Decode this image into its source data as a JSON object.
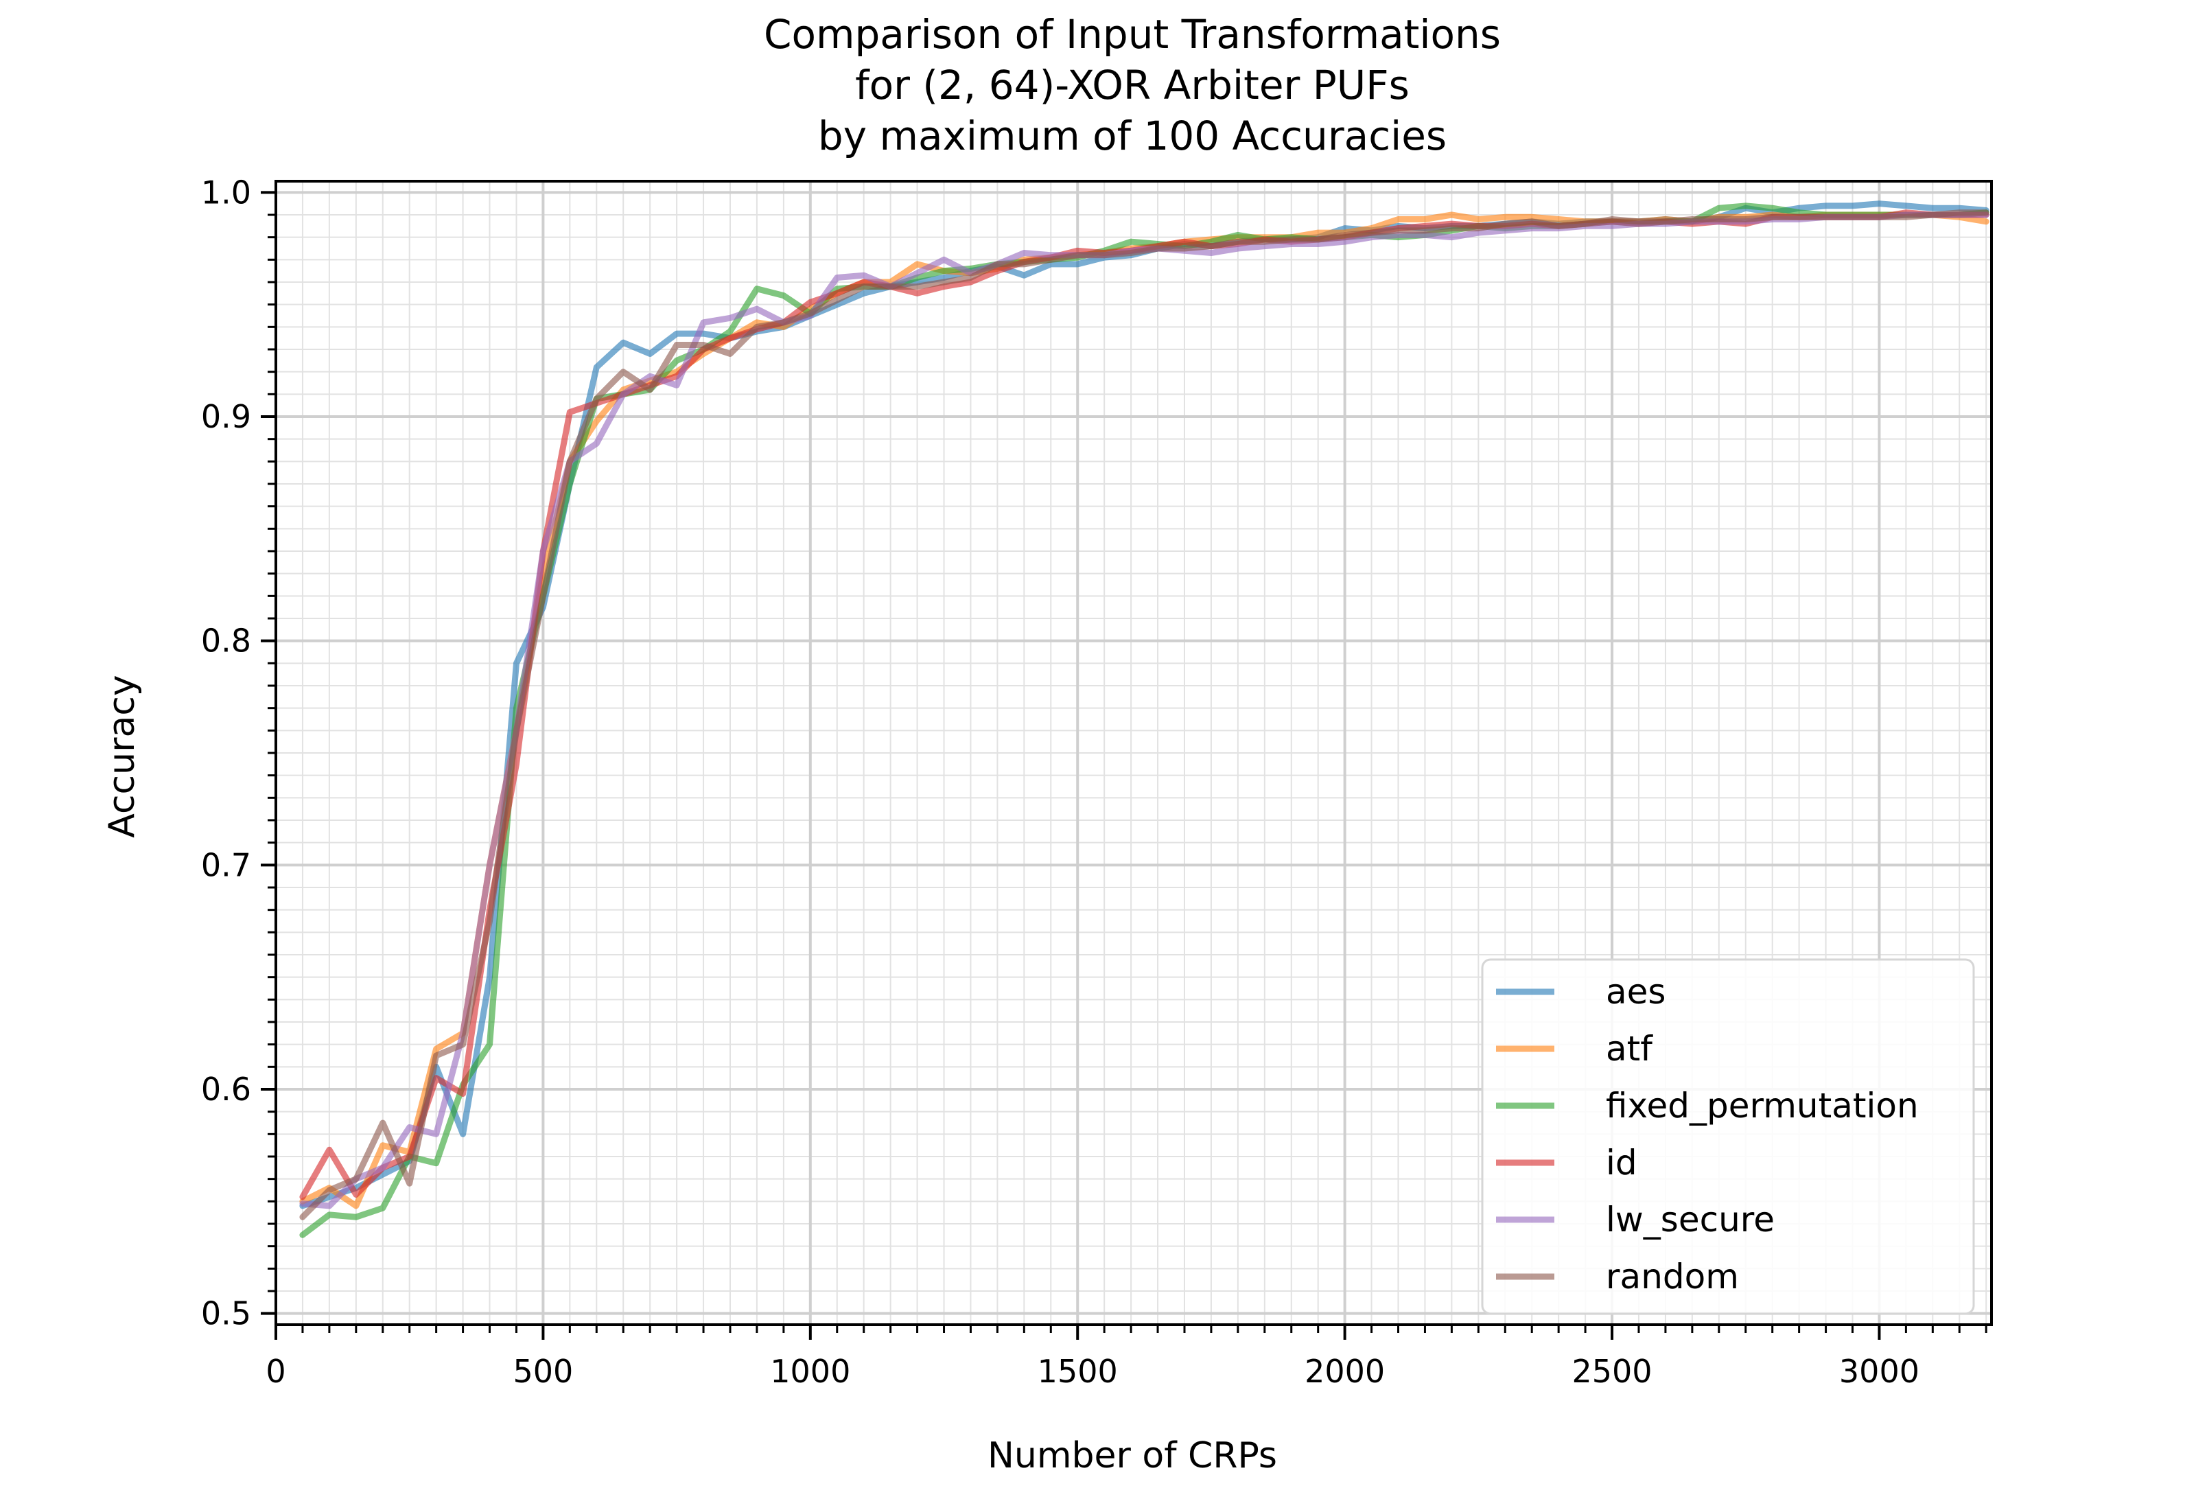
{
  "chart_data": {
    "type": "line",
    "title": [
      "Comparison of Input Transformations",
      "for (2, 64)-XOR Arbiter PUFs",
      "by maximum of 100 Accuracies"
    ],
    "xlabel": "Number of CRPs",
    "ylabel": "Accuracy",
    "xlim": [
      0,
      3210
    ],
    "ylim": [
      0.495,
      1.005
    ],
    "xticks": [
      0,
      500,
      1000,
      1500,
      2000,
      2500,
      3000
    ],
    "xtick_labels": [
      "0",
      "500",
      "1000",
      "1500",
      "2000",
      "2500",
      "3000"
    ],
    "yticks": [
      0.5,
      0.6,
      0.7,
      0.8,
      0.9,
      1.0
    ],
    "ytick_labels": [
      "0.5",
      "0.6",
      "0.7",
      "0.8",
      "0.9",
      "1.0"
    ],
    "grid": true,
    "legend_position": "lower-right",
    "x": [
      50,
      100,
      150,
      200,
      250,
      300,
      350,
      400,
      450,
      500,
      550,
      600,
      650,
      700,
      750,
      800,
      850,
      900,
      950,
      1000,
      1050,
      1100,
      1150,
      1200,
      1250,
      1300,
      1350,
      1400,
      1450,
      1500,
      1550,
      1600,
      1650,
      1700,
      1750,
      1800,
      1850,
      1900,
      1950,
      2000,
      2050,
      2100,
      2150,
      2200,
      2250,
      2300,
      2350,
      2400,
      2450,
      2500,
      2550,
      2600,
      2650,
      2700,
      2750,
      2800,
      2850,
      2900,
      2950,
      3000,
      3050,
      3100,
      3150,
      3200
    ],
    "series": [
      {
        "name": "aes",
        "color": "#1f77b4",
        "values": [
          0.548,
          0.552,
          0.556,
          0.562,
          0.568,
          0.61,
          0.58,
          0.65,
          0.79,
          0.815,
          0.87,
          0.922,
          0.933,
          0.928,
          0.937,
          0.937,
          0.935,
          0.938,
          0.94,
          0.945,
          0.95,
          0.955,
          0.958,
          0.96,
          0.962,
          0.965,
          0.967,
          0.963,
          0.968,
          0.968,
          0.971,
          0.972,
          0.975,
          0.977,
          0.976,
          0.978,
          0.979,
          0.979,
          0.98,
          0.984,
          0.983,
          0.985,
          0.984,
          0.985,
          0.985,
          0.986,
          0.987,
          0.986,
          0.987,
          0.987,
          0.987,
          0.988,
          0.987,
          0.989,
          0.993,
          0.991,
          0.993,
          0.994,
          0.994,
          0.995,
          0.994,
          0.993,
          0.993,
          0.992
        ]
      },
      {
        "name": "atf",
        "color": "#ff7f0e",
        "values": [
          0.55,
          0.556,
          0.548,
          0.575,
          0.572,
          0.618,
          0.625,
          0.7,
          0.76,
          0.83,
          0.88,
          0.898,
          0.912,
          0.916,
          0.92,
          0.928,
          0.935,
          0.942,
          0.94,
          0.948,
          0.955,
          0.96,
          0.96,
          0.968,
          0.965,
          0.964,
          0.966,
          0.97,
          0.971,
          0.972,
          0.973,
          0.975,
          0.976,
          0.978,
          0.979,
          0.98,
          0.98,
          0.98,
          0.982,
          0.982,
          0.984,
          0.988,
          0.988,
          0.99,
          0.988,
          0.989,
          0.989,
          0.988,
          0.987,
          0.987,
          0.987,
          0.988,
          0.987,
          0.989,
          0.989,
          0.99,
          0.989,
          0.99,
          0.99,
          0.99,
          0.99,
          0.99,
          0.989,
          0.987
        ]
      },
      {
        "name": "fixed_permutation",
        "color": "#2ca02c",
        "values": [
          0.535,
          0.544,
          0.543,
          0.547,
          0.57,
          0.567,
          0.602,
          0.62,
          0.77,
          0.82,
          0.87,
          0.908,
          0.91,
          0.912,
          0.925,
          0.93,
          0.938,
          0.957,
          0.954,
          0.946,
          0.957,
          0.958,
          0.958,
          0.962,
          0.965,
          0.966,
          0.968,
          0.969,
          0.97,
          0.971,
          0.974,
          0.978,
          0.977,
          0.976,
          0.978,
          0.981,
          0.979,
          0.98,
          0.979,
          0.98,
          0.981,
          0.98,
          0.981,
          0.983,
          0.985,
          0.984,
          0.985,
          0.985,
          0.986,
          0.987,
          0.986,
          0.987,
          0.987,
          0.993,
          0.994,
          0.993,
          0.991,
          0.99,
          0.99,
          0.99,
          0.99,
          0.99,
          0.99,
          0.991
        ]
      },
      {
        "name": "id",
        "color": "#d62728",
        "values": [
          0.552,
          0.573,
          0.553,
          0.565,
          0.57,
          0.605,
          0.598,
          0.68,
          0.745,
          0.84,
          0.902,
          0.906,
          0.91,
          0.914,
          0.918,
          0.93,
          0.935,
          0.939,
          0.942,
          0.951,
          0.955,
          0.96,
          0.958,
          0.955,
          0.958,
          0.96,
          0.965,
          0.969,
          0.971,
          0.974,
          0.973,
          0.974,
          0.976,
          0.978,
          0.976,
          0.977,
          0.979,
          0.978,
          0.979,
          0.98,
          0.982,
          0.984,
          0.985,
          0.986,
          0.985,
          0.985,
          0.986,
          0.985,
          0.986,
          0.987,
          0.986,
          0.987,
          0.986,
          0.987,
          0.986,
          0.989,
          0.989,
          0.989,
          0.989,
          0.989,
          0.991,
          0.99,
          0.99,
          0.99
        ]
      },
      {
        "name": "lw_secure",
        "color": "#9467bd",
        "values": [
          0.549,
          0.548,
          0.56,
          0.565,
          0.583,
          0.58,
          0.625,
          0.7,
          0.76,
          0.84,
          0.88,
          0.888,
          0.91,
          0.918,
          0.914,
          0.942,
          0.944,
          0.948,
          0.942,
          0.945,
          0.962,
          0.963,
          0.958,
          0.964,
          0.97,
          0.964,
          0.968,
          0.973,
          0.972,
          0.972,
          0.972,
          0.974,
          0.975,
          0.974,
          0.973,
          0.975,
          0.976,
          0.977,
          0.977,
          0.978,
          0.98,
          0.981,
          0.981,
          0.98,
          0.982,
          0.983,
          0.984,
          0.984,
          0.985,
          0.985,
          0.986,
          0.986,
          0.987,
          0.987,
          0.987,
          0.988,
          0.988,
          0.989,
          0.989,
          0.989,
          0.99,
          0.99,
          0.99,
          0.99
        ]
      },
      {
        "name": "random",
        "color": "#8c564b",
        "values": [
          0.543,
          0.555,
          0.56,
          0.585,
          0.558,
          0.615,
          0.62,
          0.675,
          0.76,
          0.82,
          0.88,
          0.908,
          0.92,
          0.912,
          0.932,
          0.932,
          0.928,
          0.94,
          0.942,
          0.946,
          0.952,
          0.958,
          0.958,
          0.958,
          0.96,
          0.962,
          0.968,
          0.968,
          0.97,
          0.972,
          0.972,
          0.973,
          0.975,
          0.975,
          0.976,
          0.978,
          0.978,
          0.979,
          0.979,
          0.981,
          0.982,
          0.983,
          0.983,
          0.984,
          0.984,
          0.986,
          0.987,
          0.985,
          0.986,
          0.988,
          0.987,
          0.987,
          0.988,
          0.988,
          0.988,
          0.989,
          0.989,
          0.989,
          0.989,
          0.989,
          0.989,
          0.99,
          0.991,
          0.991
        ]
      }
    ]
  }
}
